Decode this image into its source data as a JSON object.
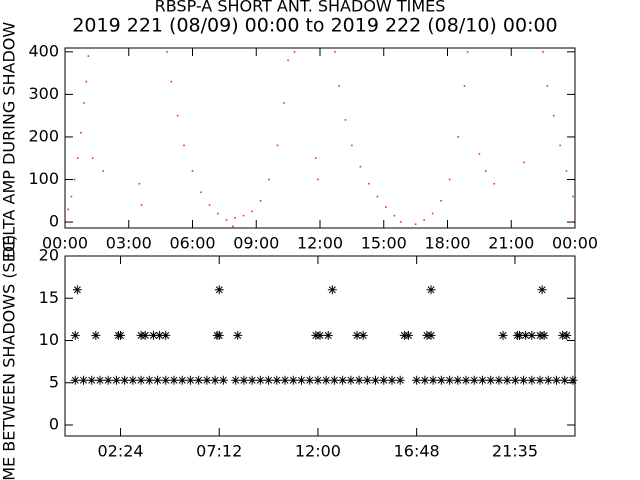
{
  "chart_data": [
    {
      "type": "scatter",
      "marker": "dot",
      "title": "RBSP-A SHORT ANT. SHADOW TIMES",
      "subtitle": "2019 221 (08/09) 00:00 to 2019 222 (08/10) 00:00",
      "y_label": "DELTA AMP DURING SHADOW",
      "color": "#ff2a10",
      "xlim": [
        0,
        24
      ],
      "ylim": [
        -14,
        409
      ],
      "xticks": [
        {
          "value": 0,
          "label": "00:00"
        },
        {
          "value": 3,
          "label": "03:00"
        },
        {
          "value": 6,
          "label": "06:00"
        },
        {
          "value": 9,
          "label": "09:00"
        },
        {
          "value": 12,
          "label": "12:00"
        },
        {
          "value": 15,
          "label": "15:00"
        },
        {
          "value": 18,
          "label": "18:00"
        },
        {
          "value": 21,
          "label": "21:00"
        },
        {
          "value": 24,
          "label": "00:00"
        }
      ],
      "yticks": [
        0,
        100,
        200,
        300,
        400
      ],
      "x": [
        0,
        0.15,
        0.3,
        0.45,
        0.6,
        0.75,
        0.9,
        1.0,
        1.1,
        1.3,
        1.8,
        3.5,
        3.6,
        4.8,
        5.0,
        5.3,
        5.6,
        6.0,
        6.4,
        6.8,
        7.2,
        7.6,
        7.9,
        8.0,
        8.4,
        8.8,
        9.2,
        9.6,
        10.0,
        10.3,
        10.5,
        10.8,
        11.8,
        11.9,
        12.7,
        12.9,
        13.2,
        13.5,
        13.9,
        14.3,
        14.7,
        15.1,
        15.5,
        15.8,
        16.5,
        16.9,
        17.3,
        17.7,
        18.1,
        18.5,
        18.8,
        18.95,
        19.5,
        19.8,
        20.2,
        21.6,
        22.5,
        22.7,
        23.0,
        23.3,
        23.6,
        23.9,
        24
      ],
      "values": [
        10,
        30,
        60,
        100,
        150,
        210,
        280,
        330,
        390,
        150,
        120,
        90,
        40,
        400,
        330,
        250,
        180,
        120,
        70,
        40,
        20,
        5,
        -10,
        10,
        15,
        25,
        50,
        100,
        180,
        280,
        380,
        400,
        150,
        100,
        400,
        320,
        240,
        180,
        130,
        90,
        60,
        35,
        15,
        0,
        -5,
        5,
        20,
        50,
        100,
        200,
        320,
        400,
        160,
        120,
        90,
        140,
        400,
        320,
        250,
        180,
        120,
        60,
        20
      ]
    },
    {
      "type": "scatter",
      "marker": "asterisk",
      "y_label": "TIME BETWEEN SHADOWS (SEC)",
      "color": "#000000",
      "xlim": [
        -0.3,
        24.5
      ],
      "ylim": [
        -1.3,
        20
      ],
      "xticks": [
        {
          "value": 2.4,
          "label": "02:24"
        },
        {
          "value": 7.2,
          "label": "07:12"
        },
        {
          "value": 12,
          "label": "12:00"
        },
        {
          "value": 16.8,
          "label": "16:48"
        },
        {
          "value": 21.58,
          "label": "21:35"
        }
      ],
      "yticks": [
        0,
        5,
        10,
        15,
        20
      ],
      "x": [
        0.3,
        7.2,
        12.7,
        17.5,
        22.9,
        0.2,
        1.2,
        2.3,
        2.4,
        3.4,
        3.6,
        4.0,
        4.3,
        4.6,
        7.1,
        7.2,
        8.1,
        11.9,
        12.1,
        12.5,
        13.9,
        14.2,
        16.2,
        16.4,
        17.3,
        17.5,
        21.0,
        21.7,
        21.8,
        22.1,
        22.4,
        22.8,
        23.0,
        23.9,
        24.1,
        0.2,
        0.6,
        1.0,
        1.4,
        1.8,
        2.2,
        2.6,
        3.0,
        3.4,
        3.8,
        4.2,
        4.6,
        5.0,
        5.4,
        5.8,
        6.2,
        6.6,
        7.0,
        7.4,
        8.0,
        8.4,
        8.8,
        9.2,
        9.6,
        10.0,
        10.4,
        10.8,
        11.2,
        11.6,
        12.0,
        12.4,
        12.8,
        13.2,
        13.6,
        14.0,
        14.4,
        14.8,
        15.2,
        15.6,
        16.0,
        16.8,
        17.2,
        17.6,
        18.0,
        18.4,
        18.8,
        19.2,
        19.6,
        20.0,
        20.4,
        20.8,
        21.2,
        21.6,
        22.0,
        22.4,
        22.8,
        23.2,
        23.6,
        24.0,
        24.4
      ],
      "values": [
        16,
        16,
        16,
        16,
        16,
        10.6,
        10.6,
        10.6,
        10.6,
        10.6,
        10.6,
        10.6,
        10.6,
        10.6,
        10.6,
        10.6,
        10.6,
        10.6,
        10.6,
        10.6,
        10.6,
        10.6,
        10.6,
        10.6,
        10.6,
        10.6,
        10.6,
        10.6,
        10.6,
        10.6,
        10.6,
        10.6,
        10.6,
        10.6,
        10.6,
        5.3,
        5.3,
        5.3,
        5.3,
        5.3,
        5.3,
        5.3,
        5.3,
        5.3,
        5.3,
        5.3,
        5.3,
        5.3,
        5.3,
        5.3,
        5.3,
        5.3,
        5.3,
        5.3,
        5.3,
        5.3,
        5.3,
        5.3,
        5.3,
        5.3,
        5.3,
        5.3,
        5.3,
        5.3,
        5.3,
        5.3,
        5.3,
        5.3,
        5.3,
        5.3,
        5.3,
        5.3,
        5.3,
        5.3,
        5.3,
        5.3,
        5.3,
        5.3,
        5.3,
        5.3,
        5.3,
        5.3,
        5.3,
        5.3,
        5.3,
        5.3,
        5.3,
        5.3,
        5.3,
        5.3,
        5.3,
        5.3,
        5.3,
        5.3,
        5.3
      ]
    }
  ]
}
